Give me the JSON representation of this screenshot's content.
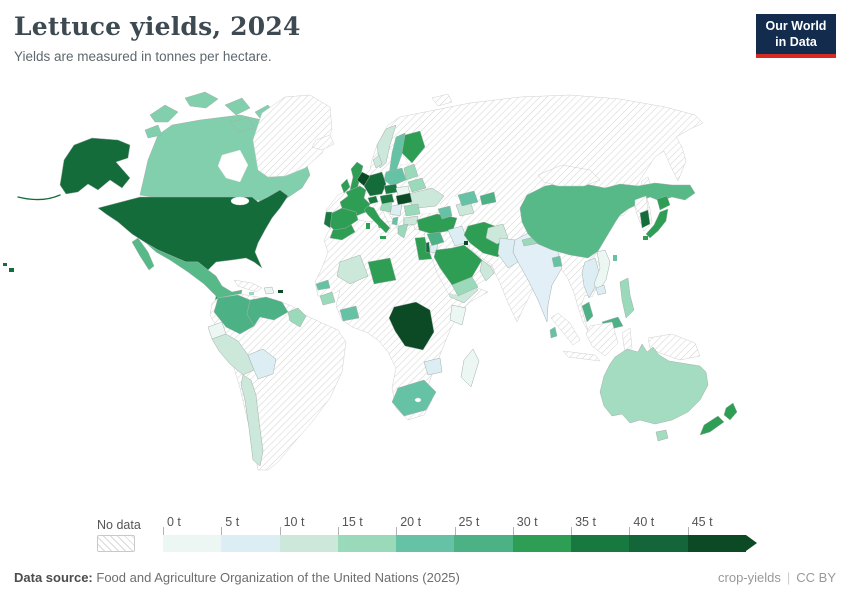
{
  "header": {
    "title": "Lettuce yields, 2024",
    "subtitle": "Yields are measured in tonnes per hectare.",
    "logo_line1": "Our World",
    "logo_line2": "in Data",
    "logo_bg": "#132c4d",
    "logo_accent": "#d42b27"
  },
  "footer": {
    "source_label": "Data source: ",
    "source_text": "Food and Agriculture Organization of the United Nations (2025)",
    "right_primary": "crop-yields",
    "divider": "|",
    "right_secondary": "CC BY"
  },
  "chart_data": {
    "type": "choropleth",
    "title": "Lettuce yields, 2024",
    "unit": "tonnes per hectare",
    "unit_short": "t",
    "year": "2024",
    "legend": {
      "no_data_label": "No data",
      "tick_labels": [
        "0 t",
        "5 t",
        "10 t",
        "15 t",
        "20 t",
        "25 t",
        "30 t",
        "35 t",
        "40 t",
        "45 t"
      ],
      "colors": [
        "#ecf7f3",
        "#dcedf4",
        "#cbe8da",
        "#9ad9ba",
        "#66c2a4",
        "#4cb184",
        "#2e9e54",
        "#17793f",
        "#14663a",
        "#0b4a25"
      ],
      "bin_size_t": 5,
      "range_t": [
        0,
        45
      ]
    },
    "no_data_regions": [
      "Russia",
      "Greenland",
      "Iceland",
      "Brazil",
      "Argentina",
      "Paraguay",
      "Uruguay",
      "Cuba",
      "Kazakhstan",
      "Mongolia",
      "North Korea",
      "Myanmar",
      "Laos",
      "Indonesia",
      "Papua New Guinea",
      "Algeria",
      "Libya",
      "Western Sahara",
      "Mauritania",
      "Nigeria",
      "Sudan",
      "Chad",
      "Somalia",
      "Tanzania",
      "Angola",
      "Zambia",
      "Mozambique",
      "Namibia",
      "Botswana",
      "Svalbard",
      "Sakhalin"
    ],
    "countries": {
      "usa": {
        "name": "United States",
        "value_t": 42,
        "color": "#156c3b"
      },
      "canada": {
        "name": "Canada",
        "value_t": 20,
        "color": "#82cfae"
      },
      "mexico": {
        "name": "Mexico",
        "value_t": 26,
        "color": "#57b888"
      },
      "guatemala": {
        "name": "Guatemala",
        "value_t": 32,
        "color": "#2e9e54"
      },
      "honduras_nicaragua": {
        "name": "Honduras & Nicaragua",
        "value_t": 12,
        "color": "#cbe8da"
      },
      "costa_rica_panama": {
        "name": "Costa Rica & Panama",
        "value_t": 22,
        "color": "#66c2a4"
      },
      "hispaniola": {
        "name": "Dominican Republic & Haiti",
        "value_t": 2,
        "color": "#ecf7f3"
      },
      "puerto_rico": {
        "name": "Puerto Rico",
        "value_t": 47,
        "color": "#0b4a25"
      },
      "jamaica": {
        "name": "Jamaica",
        "value_t": 17,
        "color": "#9ad9ba"
      },
      "colombia": {
        "name": "Colombia",
        "value_t": 27,
        "color": "#4cb184"
      },
      "venezuela": {
        "name": "Venezuela",
        "value_t": 27,
        "color": "#4cb184"
      },
      "guyanas": {
        "name": "Guyana & Suriname",
        "value_t": 17,
        "color": "#9ad9ba"
      },
      "ecuador": {
        "name": "Ecuador",
        "value_t": 2,
        "color": "#ecf7f3"
      },
      "peru": {
        "name": "Peru",
        "value_t": 12,
        "color": "#cbe8da"
      },
      "bolivia": {
        "name": "Bolivia",
        "value_t": 7,
        "color": "#dcedf4"
      },
      "chile": {
        "name": "Chile",
        "value_t": 12,
        "color": "#cbe8da"
      },
      "uk": {
        "name": "United Kingdom",
        "value_t": 31,
        "color": "#2e9e54"
      },
      "ireland": {
        "name": "Ireland",
        "value_t": 31,
        "color": "#2e9e54"
      },
      "france": {
        "name": "France",
        "value_t": 32,
        "color": "#2e9e54"
      },
      "spain": {
        "name": "Spain",
        "value_t": 31,
        "color": "#2e9e54"
      },
      "portugal": {
        "name": "Portugal",
        "value_t": 37,
        "color": "#17793f"
      },
      "germany": {
        "name": "Germany",
        "value_t": 42,
        "color": "#156c3b"
      },
      "benelux": {
        "name": "Netherlands & Belgium",
        "value_t": 47,
        "color": "#0b4a25"
      },
      "denmark": {
        "name": "Denmark",
        "value_t": 12,
        "color": "#cbe8da"
      },
      "norway": {
        "name": "Norway",
        "value_t": 12,
        "color": "#cbe8da"
      },
      "sweden": {
        "name": "Sweden",
        "value_t": 22,
        "color": "#66c2a4"
      },
      "finland": {
        "name": "Finland",
        "value_t": 32,
        "color": "#2e9e54"
      },
      "poland": {
        "name": "Poland",
        "value_t": 22,
        "color": "#66c2a4"
      },
      "czechia": {
        "name": "Czechia",
        "value_t": 37,
        "color": "#17793f"
      },
      "slovakia": {
        "name": "Slovakia",
        "value_t": 3,
        "color": "#ecf7f3"
      },
      "austria": {
        "name": "Austria",
        "value_t": 37,
        "color": "#17793f"
      },
      "switzerland": {
        "name": "Switzerland",
        "value_t": 38,
        "color": "#17793f"
      },
      "hungary": {
        "name": "Hungary",
        "value_t": 47,
        "color": "#0b4a25"
      },
      "italy": {
        "name": "Italy",
        "value_t": 31,
        "color": "#2e9e54"
      },
      "croatia": {
        "name": "Croatia & Slovenia",
        "value_t": 17,
        "color": "#9ad9ba"
      },
      "serbia": {
        "name": "Serbia & Bosnia",
        "value_t": 7,
        "color": "#dcedf4"
      },
      "romania": {
        "name": "Romania",
        "value_t": 17,
        "color": "#9ad9ba"
      },
      "bulgaria": {
        "name": "Bulgaria",
        "value_t": 12,
        "color": "#cbe8da"
      },
      "greece": {
        "name": "Greece",
        "value_t": 17,
        "color": "#9ad9ba"
      },
      "albania": {
        "name": "Albania",
        "value_t": 22,
        "color": "#66c2a4"
      },
      "baltics": {
        "name": "Baltic states",
        "value_t": 17,
        "color": "#9ad9ba"
      },
      "belarus": {
        "name": "Belarus",
        "value_t": 17,
        "color": "#9ad9ba"
      },
      "ukraine": {
        "name": "Ukraine",
        "value_t": 12,
        "color": "#cbe8da"
      },
      "turkey": {
        "name": "Turkey",
        "value_t": 32,
        "color": "#2e9e54"
      },
      "levant": {
        "name": "Syria & Lebanon",
        "value_t": 27,
        "color": "#4cb184"
      },
      "israel": {
        "name": "Israel",
        "value_t": 42,
        "color": "#156c3b"
      },
      "jordan": {
        "name": "Jordan",
        "value_t": 7,
        "color": "#dcedf4"
      },
      "iraq": {
        "name": "Iraq",
        "value_t": 7,
        "color": "#dcedf4"
      },
      "iran": {
        "name": "Iran",
        "value_t": 31,
        "color": "#2e9e54"
      },
      "kuwait": {
        "name": "Kuwait",
        "value_t": 47,
        "color": "#0b4a25"
      },
      "saudi_arabia": {
        "name": "Saudi Arabia",
        "value_t": 31,
        "color": "#2e9e54"
      },
      "yemen": {
        "name": "Yemen",
        "value_t": 17,
        "color": "#9ad9ba"
      },
      "oman": {
        "name": "Oman",
        "value_t": 12,
        "color": "#cbe8da"
      },
      "caucasus": {
        "name": "Georgia, Armenia & Azerbaijan",
        "value_t": 22,
        "color": "#66c2a4"
      },
      "turkmenistan": {
        "name": "Turkmenistan",
        "value_t": 12,
        "color": "#cbe8da"
      },
      "uzbekistan": {
        "name": "Uzbekistan",
        "value_t": 22,
        "color": "#66c2a4"
      },
      "kyrgyzstan": {
        "name": "Kyrgyzstan",
        "value_t": 27,
        "color": "#4cb184"
      },
      "afghanistan": {
        "name": "Afghanistan",
        "value_t": 12,
        "color": "#cbe8da"
      },
      "pakistan": {
        "name": "Pakistan",
        "value_t": 7,
        "color": "#dcedf4"
      },
      "india": {
        "name": "India",
        "value_t": 3,
        "color": "#e2eff7"
      },
      "nepal": {
        "name": "Nepal",
        "value_t": 17,
        "color": "#9ad9ba"
      },
      "bangladesh": {
        "name": "Bangladesh",
        "value_t": 22,
        "color": "#66c2a4"
      },
      "sri_lanka": {
        "name": "Sri Lanka",
        "value_t": 22,
        "color": "#66c2a4"
      },
      "china": {
        "name": "China",
        "value_t": 26,
        "color": "#57b888"
      },
      "south_korea": {
        "name": "South Korea",
        "value_t": 42,
        "color": "#156c3b"
      },
      "japan": {
        "name": "Japan",
        "value_t": 31,
        "color": "#2e9e54"
      },
      "taiwan": {
        "name": "Taiwan",
        "value_t": 22,
        "color": "#66c2a4"
      },
      "thailand": {
        "name": "Thailand",
        "value_t": 6,
        "color": "#dcedf4"
      },
      "vietnam": {
        "name": "Vietnam",
        "value_t": 3,
        "color": "#ecf7f3"
      },
      "cambodia": {
        "name": "Cambodia",
        "value_t": 7,
        "color": "#dcedf4"
      },
      "malaysia": {
        "name": "Malaysia",
        "value_t": 27,
        "color": "#4cb184"
      },
      "philippines": {
        "name": "Philippines",
        "value_t": 16,
        "color": "#9ad9ba"
      },
      "morocco": {
        "name": "Morocco",
        "value_t": 32,
        "color": "#2e9e54"
      },
      "tunisia": {
        "name": "Tunisia",
        "value_t": 31,
        "color": "#2e9e54"
      },
      "egypt": {
        "name": "Egypt",
        "value_t": 31,
        "color": "#2e9e54"
      },
      "mali": {
        "name": "Mali",
        "value_t": 12,
        "color": "#cbe8da"
      },
      "niger": {
        "name": "Niger",
        "value_t": 31,
        "color": "#2e9e54"
      },
      "senegal": {
        "name": "Senegal",
        "value_t": 22,
        "color": "#66c2a4"
      },
      "guinea": {
        "name": "Guinea",
        "value_t": 17,
        "color": "#9ad9ba"
      },
      "cote_divoire_ghana": {
        "name": "Cote d'Ivoire & Ghana",
        "value_t": 22,
        "color": "#66c2a4"
      },
      "ethiopia": {
        "name": "Ethiopia",
        "value_t": 12,
        "color": "#cbe8da"
      },
      "kenya": {
        "name": "Kenya",
        "value_t": 2,
        "color": "#ecf7f3"
      },
      "dr_congo": {
        "name": "Democratic Republic of Congo",
        "value_t": 47,
        "color": "#0b4a25"
      },
      "zimbabwe": {
        "name": "Zimbabwe",
        "value_t": 7,
        "color": "#dcedf4"
      },
      "south_africa": {
        "name": "South Africa",
        "value_t": 21,
        "color": "#66c2a4"
      },
      "madagascar": {
        "name": "Madagascar",
        "value_t": 2,
        "color": "#ecf7f3"
      },
      "australia": {
        "name": "Australia",
        "value_t": 17,
        "color": "#a3dcc1"
      },
      "new_zealand": {
        "name": "New Zealand",
        "value_t": 31,
        "color": "#2e9e54"
      }
    }
  }
}
